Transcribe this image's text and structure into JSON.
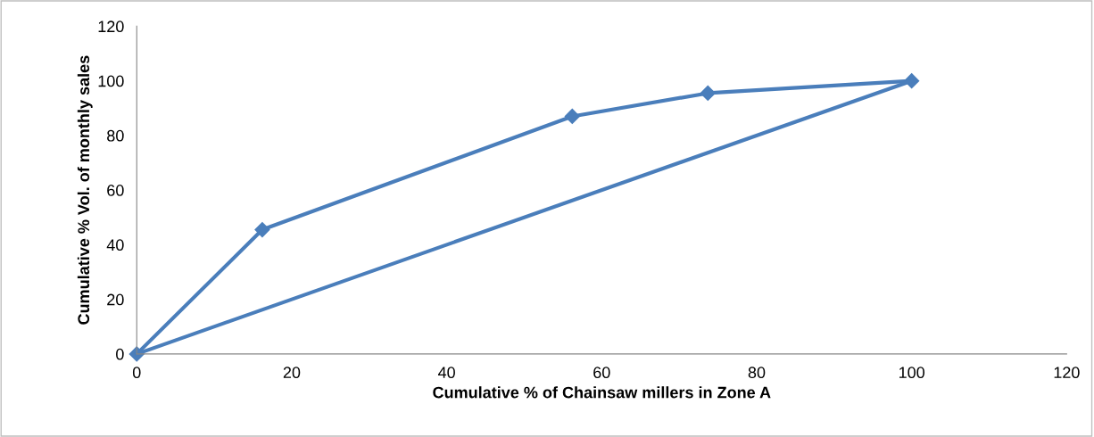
{
  "chart_data": {
    "type": "line",
    "xlabel": "Cumulative % of Chainsaw millers in Zone A",
    "ylabel": "Cumulative % Vol. of monthly sales",
    "series": [
      {
        "color": "#4a7ebb",
        "x": [
          0,
          16.2,
          56.2,
          73.7,
          100
        ],
        "values": [
          0,
          45.5,
          87,
          95.5,
          100
        ],
        "marker": "diamond"
      },
      {
        "color": "#4a7ebb",
        "x": [
          0,
          100
        ],
        "values": [
          0,
          100
        ],
        "marker": "none"
      }
    ],
    "xlim": [
      0,
      120
    ],
    "ylim": [
      0,
      120
    ],
    "xticks": [
      0,
      20,
      40,
      60,
      80,
      100,
      120
    ],
    "yticks": [
      0,
      20,
      40,
      60,
      80,
      100,
      120
    ],
    "grid": false,
    "legend": false,
    "line_style": "solid"
  }
}
